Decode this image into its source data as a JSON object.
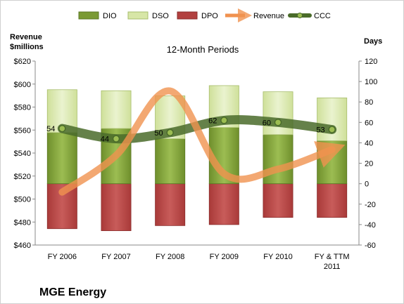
{
  "chart_data": {
    "type": "bar",
    "subtitle": "12-Month Periods",
    "company": "MGE Energy",
    "left_axis": {
      "label_line1": "Revenue",
      "label_line2": "$millions",
      "range": [
        460,
        620
      ],
      "ticks": [
        "$460",
        "$480",
        "$500",
        "$520",
        "$540",
        "$560",
        "$580",
        "$600",
        "$620"
      ]
    },
    "right_axis": {
      "label": "Days",
      "range": [
        -60,
        120
      ],
      "ticks": [
        "-60",
        "-40",
        "-20",
        "0",
        "20",
        "40",
        "60",
        "80",
        "100",
        "120"
      ]
    },
    "categories": [
      "FY 2006",
      "FY 2007",
      "FY 2008",
      "FY 2009",
      "FY 2010",
      "FY & TTM 2011"
    ],
    "grid": false,
    "legend_position": "top",
    "legend": [
      "DIO",
      "DSO",
      "DPO",
      "Revenue",
      "CCC"
    ],
    "series": [
      {
        "name": "DIO",
        "axis": "right",
        "color": "#7a9a34",
        "values": [
          50,
          54,
          44,
          55,
          48,
          42
        ]
      },
      {
        "name": "DSO",
        "axis": "right",
        "color": "#d7e6a7",
        "values": [
          42,
          37,
          42,
          41,
          42,
          42
        ]
      },
      {
        "name": "DPO",
        "axis": "right",
        "color": "#b2403f",
        "values": [
          -44,
          -46,
          -41,
          -40,
          -33,
          -33
        ]
      },
      {
        "name": "Revenue",
        "axis": "left",
        "color": "#f0924f",
        "values": [
          506,
          538,
          594,
          522,
          526,
          543
        ]
      },
      {
        "name": "CCC",
        "axis": "right",
        "color": "#4a6b2a",
        "values": [
          54,
          44,
          50,
          62,
          60,
          53
        ]
      }
    ],
    "ccc_labels": [
      "54",
      "44",
      "50",
      "62",
      "60",
      "53"
    ]
  }
}
